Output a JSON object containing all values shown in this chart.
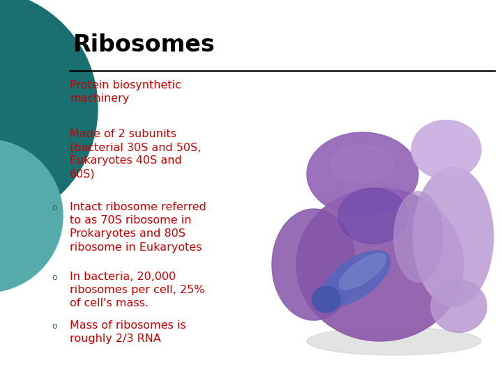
{
  "title": "Ribosomes",
  "title_fontsize": 24,
  "title_color": "#000000",
  "bg_color": "#ffffff",
  "line_color": "#000000",
  "bullet_text_color": "#cc0000",
  "bullet_marker_color": "#336655",
  "bullets": [
    "Protein biosynthetic\nmachinery",
    "Made of 2 subunits\n(bacterial 30S and 50S,\nEukaryotes 40S and\n60S)",
    "Intact ribosome referred\nto as 70S ribosome in\nProkaryotes and 80S\nribosome in Eukaryotes",
    "In bacteria, 20,000\nribosomes per cell, 25%\nof cell's mass.",
    "Mass of ribosomes is\nroughly 2/3 RNA"
  ],
  "bullet_fontsize": 11.5,
  "circle_big_color": "#1a7070",
  "circle_small_color": "#55aaaa",
  "fig_width": 7.2,
  "fig_height": 5.4,
  "dpi": 100
}
